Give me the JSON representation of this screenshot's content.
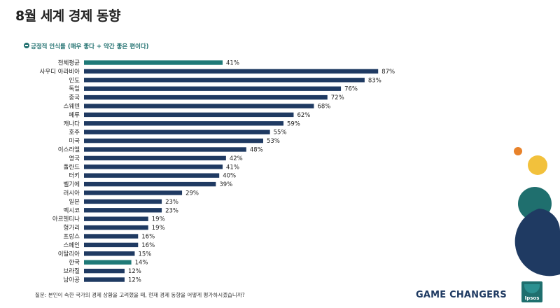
{
  "header": {
    "title": "8월 세계 경제 동향",
    "subtitle": "긍정적 인식률 (매우 좋다 + 약간 좋은 편이다)"
  },
  "footer": {
    "question": "질문: 본인이 속한 국가의 경제 상황을 고려했을 때, 현재 경제 동향을 어떻게 평가하시겠습니까?",
    "brand": "GAME CHANGERS",
    "logo_text": "Ipsos"
  },
  "colors": {
    "accent": "#1f7a78",
    "bar": "#1f3a62",
    "dot_orange": "#e8822a",
    "dot_yellow": "#f2c13c",
    "circle_teal": "#1f6f6e",
    "circle_navy": "#1f3a62"
  },
  "chart_data": {
    "type": "bar",
    "orientation": "horizontal",
    "categories": [
      "전체평균",
      "사우디 아라비아",
      "인도",
      "독일",
      "중국",
      "스웨덴",
      "페루",
      "캐나다",
      "호주",
      "미국",
      "이스라엘",
      "영국",
      "폴란드",
      "터키",
      "벨기에",
      "러시아",
      "일본",
      "멕시코",
      "아르헨티나",
      "헝가리",
      "프랑스",
      "스페인",
      "이탈리아",
      "한국",
      "브라질",
      "남아공"
    ],
    "values": [
      41,
      87,
      83,
      76,
      72,
      68,
      62,
      59,
      55,
      53,
      48,
      42,
      41,
      40,
      39,
      29,
      23,
      23,
      19,
      19,
      16,
      16,
      15,
      14,
      12,
      12
    ],
    "value_labels": [
      "41%",
      "87%",
      "83%",
      "76%",
      "72%",
      "68%",
      "62%",
      "59%",
      "55%",
      "53%",
      "48%",
      "42%",
      "41%",
      "40%",
      "39%",
      "29%",
      "23%",
      "23%",
      "19%",
      "19%",
      "16%",
      "16%",
      "15%",
      "14%",
      "12%",
      "12%"
    ],
    "highlighted": [
      "전체평균",
      "한국"
    ],
    "title": "8월 세계 경제 동향",
    "subtitle": "긍정적 인식률 (매우 좋다 + 약간 좋은 편이다)",
    "xlim": [
      0,
      87
    ],
    "grid": false
  }
}
